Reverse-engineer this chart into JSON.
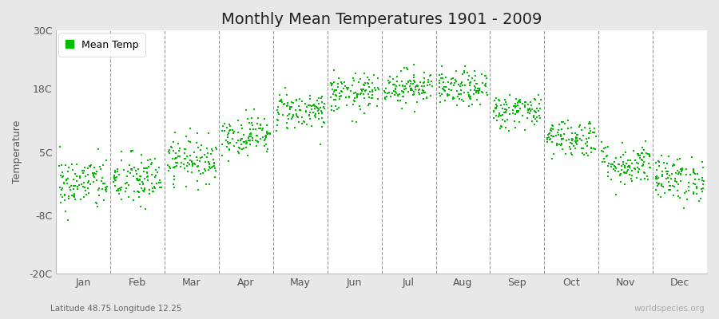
{
  "title": "Monthly Mean Temperatures 1901 - 2009",
  "ylabel": "Temperature",
  "subtitle": "Latitude 48.75 Longitude 12.25",
  "watermark": "worldspecies.org",
  "ylim": [
    -20,
    30
  ],
  "yticks": [
    -20,
    -8,
    5,
    18,
    30
  ],
  "ytick_labels": [
    "-20C",
    "-8C",
    "5C",
    "18C",
    "30C"
  ],
  "months": [
    "Jan",
    "Feb",
    "Mar",
    "Apr",
    "May",
    "Jun",
    "Jul",
    "Aug",
    "Sep",
    "Oct",
    "Nov",
    "Dec"
  ],
  "month_means": [
    -1.5,
    -0.8,
    3.5,
    8.5,
    13.5,
    17.0,
    18.5,
    18.0,
    13.5,
    8.0,
    2.5,
    -0.5
  ],
  "month_stds": [
    2.8,
    2.8,
    2.3,
    2.0,
    2.0,
    2.0,
    1.8,
    1.8,
    1.8,
    2.0,
    2.2,
    2.3
  ],
  "n_years": 109,
  "dot_color": "#00bb00",
  "dot_size": 3,
  "fig_bg_color": "#e8e8e8",
  "plot_bg_color": "#ffffff",
  "vline_color": "#999999",
  "legend_label": "Mean Temp",
  "title_fontsize": 14,
  "axis_label_fontsize": 9,
  "tick_fontsize": 9,
  "seed": 42
}
